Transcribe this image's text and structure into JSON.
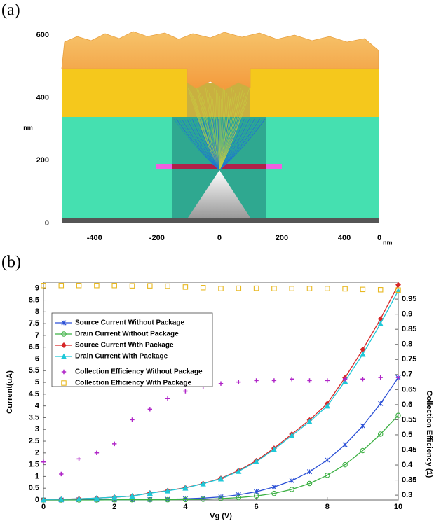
{
  "chart_data": [
    {
      "type": "image",
      "panel_label": "(a)",
      "ylabel": "nm",
      "xlabel": "nm",
      "end_label": "0",
      "xlim": [
        -505,
        510
      ],
      "ylim": [
        0,
        611
      ],
      "xticks": [
        -400,
        -200,
        0,
        200,
        400
      ],
      "yticks": [
        0,
        200,
        400,
        600
      ]
    },
    {
      "type": "line",
      "panel_label": "(b)",
      "xlabel": "Vg (V)",
      "ylabel": "Current(uA)",
      "y2label": "Collection Efficiency (1)",
      "x": [
        0,
        0.5,
        1,
        1.5,
        2,
        2.5,
        3,
        3.5,
        4,
        4.5,
        5,
        5.5,
        6,
        6.5,
        7,
        7.5,
        8,
        8.5,
        9,
        9.5,
        10
      ],
      "xlim": [
        0,
        10
      ],
      "xticks": [
        0,
        2,
        4,
        6,
        8,
        10
      ],
      "ylim": [
        0,
        9.26
      ],
      "yticks": [
        0,
        0.5,
        1,
        1.5,
        2,
        2.5,
        3,
        3.5,
        4,
        4.5,
        5,
        5.5,
        6,
        6.5,
        7,
        7.5,
        8,
        8.5,
        9
      ],
      "y2lim": [
        0.284,
        1.006
      ],
      "y2ticks": [
        0.3,
        0.35,
        0.4,
        0.45,
        0.5,
        0.55,
        0.6,
        0.65,
        0.7,
        0.75,
        0.8,
        0.85,
        0.9,
        0.95
      ],
      "grid": false,
      "series": [
        {
          "name": "Source Current Without Package",
          "color": "#2a4fd6",
          "marker": "x",
          "line": true,
          "values": [
            0,
            0,
            0.01,
            0.01,
            0.01,
            0.01,
            0.02,
            0.03,
            0.05,
            0.08,
            0.13,
            0.22,
            0.35,
            0.55,
            0.82,
            1.2,
            1.7,
            2.35,
            3.15,
            4.1,
            5.2
          ]
        },
        {
          "name": "Drain Current Without Package",
          "color": "#3cb043",
          "marker": "circle",
          "line": true,
          "values": [
            0,
            0,
            0,
            0,
            0.01,
            0.01,
            0.01,
            0.01,
            0.02,
            0.03,
            0.06,
            0.1,
            0.17,
            0.28,
            0.45,
            0.7,
            1.05,
            1.5,
            2.1,
            2.8,
            3.6
          ]
        },
        {
          "name": "Source Current With Package",
          "color": "#d62728",
          "marker": "diamond",
          "line": true,
          "values": [
            0.02,
            0.03,
            0.05,
            0.08,
            0.12,
            0.17,
            0.3,
            0.4,
            0.52,
            0.7,
            0.92,
            1.25,
            1.67,
            2.2,
            2.8,
            3.4,
            4.1,
            5.2,
            6.4,
            7.7,
            9.15
          ]
        },
        {
          "name": "Drain Current With Package",
          "color": "#1fc8d8",
          "marker": "triangle",
          "line": true,
          "values": [
            0.02,
            0.03,
            0.05,
            0.08,
            0.12,
            0.17,
            0.29,
            0.39,
            0.51,
            0.69,
            0.9,
            1.22,
            1.63,
            2.15,
            2.74,
            3.33,
            4.0,
            5.05,
            6.2,
            7.5,
            8.9
          ]
        },
        {
          "name": "Collection Efficiency Without Package",
          "color": "#b026c8",
          "marker": "plus",
          "line": false,
          "axis": "y2",
          "values": [
            0.41,
            0.37,
            0.42,
            0.44,
            0.47,
            0.55,
            0.585,
            0.62,
            0.645,
            0.66,
            0.67,
            0.675,
            0.68,
            0.68,
            0.685,
            0.68,
            0.68,
            0.685,
            0.685,
            0.69,
            0.69
          ]
        },
        {
          "name": "Collection Efficiency With Package",
          "color": "#e8b820",
          "marker": "square",
          "line": false,
          "axis": "y2",
          "values": [
            0.995,
            0.995,
            0.995,
            0.995,
            0.995,
            0.994,
            0.994,
            0.993,
            0.99,
            0.988,
            0.985,
            0.986,
            0.986,
            0.985,
            0.985,
            0.985,
            0.985,
            0.984,
            0.982,
            0.981,
            0.98
          ]
        }
      ]
    }
  ]
}
